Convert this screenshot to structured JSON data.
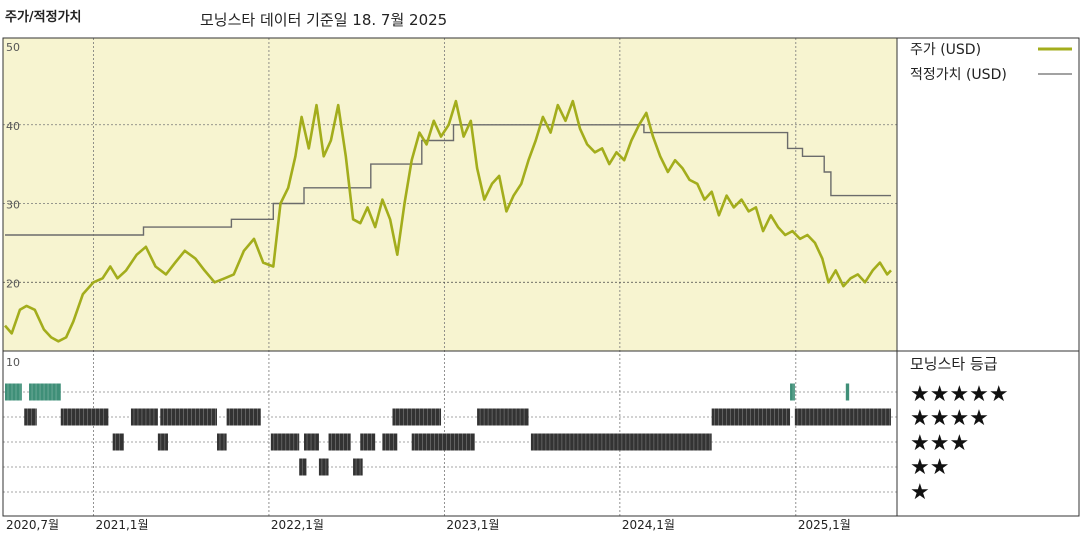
{
  "header": {
    "title": "주가/적정가치",
    "subtitle": "모닝스타 데이터 기준일 18. 7월 2025"
  },
  "legend": {
    "price": "주가 (USD)",
    "fair": "적정가치 (USD)"
  },
  "rating": {
    "title": "모닝스타 등급",
    "levels": [
      "★★★★★",
      "★★★★",
      "★★★",
      "★★",
      "★"
    ]
  },
  "colors": {
    "plot_bg": "#f7f4d0",
    "price_line": "#a3ad1c",
    "fair_line": "#6b6b6b",
    "five_star": "#3f8f78",
    "bars": "#333333"
  },
  "chart_data": [
    {
      "type": "line",
      "title": "주가/적정가치",
      "x_range": [
        "2020-07-01",
        "2025-07-18"
      ],
      "x_ticks": [
        "2020,7월",
        "2021,1월",
        "2022,1월",
        "2023,1월",
        "2024,1월",
        "2025,1월"
      ],
      "x_tick_dates": [
        "2020-07-01",
        "2021-01-01",
        "2022-01-01",
        "2023-01-01",
        "2024-01-01",
        "2025-01-01"
      ],
      "y_ticks": [
        50,
        40,
        30,
        20
      ],
      "ylim": [
        10,
        50
      ],
      "series": [
        {
          "name": "주가 (USD)",
          "points": [
            [
              "2020-07-01",
              14.5
            ],
            [
              "2020-07-15",
              13.5
            ],
            [
              "2020-08-01",
              16.5
            ],
            [
              "2020-08-15",
              17.0
            ],
            [
              "2020-09-01",
              16.5
            ],
            [
              "2020-09-20",
              14.0
            ],
            [
              "2020-10-05",
              13.0
            ],
            [
              "2020-10-20",
              12.5
            ],
            [
              "2020-11-05",
              13.0
            ],
            [
              "2020-11-20",
              15.0
            ],
            [
              "2020-12-10",
              18.5
            ],
            [
              "2021-01-01",
              20.0
            ],
            [
              "2021-01-20",
              20.5
            ],
            [
              "2021-02-05",
              22.0
            ],
            [
              "2021-02-20",
              20.5
            ],
            [
              "2021-03-10",
              21.5
            ],
            [
              "2021-04-01",
              23.5
            ],
            [
              "2021-04-20",
              24.5
            ],
            [
              "2021-05-10",
              22.0
            ],
            [
              "2021-06-01",
              21.0
            ],
            [
              "2021-06-20",
              22.5
            ],
            [
              "2021-07-10",
              24.0
            ],
            [
              "2021-08-01",
              23.0
            ],
            [
              "2021-08-20",
              21.5
            ],
            [
              "2021-09-10",
              20.0
            ],
            [
              "2021-10-01",
              20.5
            ],
            [
              "2021-10-20",
              21.0
            ],
            [
              "2021-11-10",
              24.0
            ],
            [
              "2021-12-01",
              25.5
            ],
            [
              "2021-12-20",
              22.5
            ],
            [
              "2022-01-10",
              22.0
            ],
            [
              "2022-01-25",
              30.0
            ],
            [
              "2022-02-10",
              32.0
            ],
            [
              "2022-02-25",
              36.0
            ],
            [
              "2022-03-10",
              41.0
            ],
            [
              "2022-03-25",
              37.0
            ],
            [
              "2022-04-10",
              42.5
            ],
            [
              "2022-04-25",
              36.0
            ],
            [
              "2022-05-10",
              38.0
            ],
            [
              "2022-05-25",
              42.5
            ],
            [
              "2022-06-10",
              36.0
            ],
            [
              "2022-06-25",
              28.0
            ],
            [
              "2022-07-10",
              27.5
            ],
            [
              "2022-07-25",
              29.5
            ],
            [
              "2022-08-10",
              27.0
            ],
            [
              "2022-08-25",
              30.5
            ],
            [
              "2022-09-10",
              28.0
            ],
            [
              "2022-09-25",
              23.5
            ],
            [
              "2022-10-10",
              30.0
            ],
            [
              "2022-10-25",
              35.5
            ],
            [
              "2022-11-10",
              39.0
            ],
            [
              "2022-11-25",
              37.5
            ],
            [
              "2022-12-10",
              40.5
            ],
            [
              "2022-12-25",
              38.5
            ],
            [
              "2023-01-10",
              40.0
            ],
            [
              "2023-01-25",
              43.0
            ],
            [
              "2023-02-10",
              38.5
            ],
            [
              "2023-02-25",
              40.5
            ],
            [
              "2023-03-10",
              34.5
            ],
            [
              "2023-03-25",
              30.5
            ],
            [
              "2023-04-10",
              32.5
            ],
            [
              "2023-04-25",
              33.5
            ],
            [
              "2023-05-10",
              29.0
            ],
            [
              "2023-05-25",
              31.0
            ],
            [
              "2023-06-10",
              32.5
            ],
            [
              "2023-06-25",
              35.5
            ],
            [
              "2023-07-10",
              38.0
            ],
            [
              "2023-07-25",
              41.0
            ],
            [
              "2023-08-10",
              39.0
            ],
            [
              "2023-08-25",
              42.5
            ],
            [
              "2023-09-10",
              40.5
            ],
            [
              "2023-09-25",
              43.0
            ],
            [
              "2023-10-10",
              39.5
            ],
            [
              "2023-10-25",
              37.5
            ],
            [
              "2023-11-10",
              36.5
            ],
            [
              "2023-11-25",
              37.0
            ],
            [
              "2023-12-10",
              35.0
            ],
            [
              "2023-12-25",
              36.5
            ],
            [
              "2024-01-10",
              35.5
            ],
            [
              "2024-01-25",
              38.0
            ],
            [
              "2024-02-10",
              40.0
            ],
            [
              "2024-02-25",
              41.5
            ],
            [
              "2024-03-10",
              38.5
            ],
            [
              "2024-03-25",
              36.0
            ],
            [
              "2024-04-10",
              34.0
            ],
            [
              "2024-04-25",
              35.5
            ],
            [
              "2024-05-10",
              34.5
            ],
            [
              "2024-05-25",
              33.0
            ],
            [
              "2024-06-10",
              32.5
            ],
            [
              "2024-06-25",
              30.5
            ],
            [
              "2024-07-10",
              31.5
            ],
            [
              "2024-07-25",
              28.5
            ],
            [
              "2024-08-10",
              31.0
            ],
            [
              "2024-08-25",
              29.5
            ],
            [
              "2024-09-10",
              30.5
            ],
            [
              "2024-09-25",
              29.0
            ],
            [
              "2024-10-10",
              29.5
            ],
            [
              "2024-10-25",
              26.5
            ],
            [
              "2024-11-10",
              28.5
            ],
            [
              "2024-11-25",
              27.0
            ],
            [
              "2024-12-10",
              26.0
            ],
            [
              "2024-12-25",
              26.5
            ],
            [
              "2025-01-10",
              25.5
            ],
            [
              "2025-01-25",
              26.0
            ],
            [
              "2025-02-10",
              25.0
            ],
            [
              "2025-02-25",
              23.0
            ],
            [
              "2025-03-10",
              20.0
            ],
            [
              "2025-03-25",
              21.5
            ],
            [
              "2025-04-10",
              19.5
            ],
            [
              "2025-04-25",
              20.5
            ],
            [
              "2025-05-10",
              21.0
            ],
            [
              "2025-05-25",
              20.0
            ],
            [
              "2025-06-10",
              21.5
            ],
            [
              "2025-06-25",
              22.5
            ],
            [
              "2025-07-10",
              21.0
            ],
            [
              "2025-07-18",
              21.5
            ]
          ]
        },
        {
          "name": "적정가치 (USD)",
          "step": true,
          "points": [
            [
              "2020-07-01",
              26.0
            ],
            [
              "2021-01-01",
              26.0
            ],
            [
              "2021-04-15",
              26.0
            ],
            [
              "2021-04-15",
              27.0
            ],
            [
              "2021-10-15",
              27.0
            ],
            [
              "2021-10-15",
              28.0
            ],
            [
              "2022-01-10",
              28.0
            ],
            [
              "2022-01-10",
              30.0
            ],
            [
              "2022-03-15",
              30.0
            ],
            [
              "2022-03-15",
              32.0
            ],
            [
              "2022-08-01",
              32.0
            ],
            [
              "2022-08-01",
              35.0
            ],
            [
              "2022-11-15",
              35.0
            ],
            [
              "2022-11-15",
              38.0
            ],
            [
              "2023-01-20",
              38.0
            ],
            [
              "2023-01-20",
              40.0
            ],
            [
              "2024-02-20",
              40.0
            ],
            [
              "2024-02-20",
              39.0
            ],
            [
              "2024-12-15",
              39.0
            ],
            [
              "2024-12-15",
              37.0
            ],
            [
              "2025-01-15",
              37.0
            ],
            [
              "2025-01-15",
              36.0
            ],
            [
              "2025-03-01",
              36.0
            ],
            [
              "2025-03-01",
              34.0
            ],
            [
              "2025-03-15",
              34.0
            ],
            [
              "2025-03-15",
              31.0
            ],
            [
              "2025-07-18",
              31.0
            ]
          ]
        }
      ]
    },
    {
      "type": "bar",
      "title": "모닝스타 등급",
      "y_ticks": [
        10
      ],
      "rows": [
        "★★★★★",
        "★★★★",
        "★★★",
        "★★",
        "★"
      ],
      "segments": [
        {
          "stars": 5,
          "start": "2020-07-01",
          "end": "2020-08-05"
        },
        {
          "stars": 5,
          "start": "2020-08-20",
          "end": "2020-10-25"
        },
        {
          "stars": 5,
          "start": "2024-12-20",
          "end": "2024-12-30"
        },
        {
          "stars": 5,
          "start": "2025-04-15",
          "end": "2025-04-22"
        },
        {
          "stars": 4,
          "start": "2020-08-10",
          "end": "2020-09-05"
        },
        {
          "stars": 4,
          "start": "2020-10-25",
          "end": "2021-02-01"
        },
        {
          "stars": 4,
          "start": "2021-03-20",
          "end": "2021-05-15"
        },
        {
          "stars": 4,
          "start": "2021-05-20",
          "end": "2021-09-15"
        },
        {
          "stars": 4,
          "start": "2021-10-05",
          "end": "2021-12-15"
        },
        {
          "stars": 4,
          "start": "2022-09-15",
          "end": "2022-12-25"
        },
        {
          "stars": 4,
          "start": "2023-03-10",
          "end": "2023-06-25"
        },
        {
          "stars": 4,
          "start": "2024-07-10",
          "end": "2024-12-20"
        },
        {
          "stars": 4,
          "start": "2024-12-30",
          "end": "2025-07-18"
        },
        {
          "stars": 3,
          "start": "2021-02-10",
          "end": "2021-03-05"
        },
        {
          "stars": 3,
          "start": "2021-05-15",
          "end": "2021-06-05"
        },
        {
          "stars": 3,
          "start": "2021-09-15",
          "end": "2021-10-05"
        },
        {
          "stars": 3,
          "start": "2022-01-05",
          "end": "2022-03-05"
        },
        {
          "stars": 3,
          "start": "2022-03-15",
          "end": "2022-04-15"
        },
        {
          "stars": 3,
          "start": "2022-05-05",
          "end": "2022-06-20"
        },
        {
          "stars": 3,
          "start": "2022-07-10",
          "end": "2022-08-10"
        },
        {
          "stars": 3,
          "start": "2022-08-25",
          "end": "2022-09-25"
        },
        {
          "stars": 3,
          "start": "2022-10-25",
          "end": "2023-03-05"
        },
        {
          "stars": 3,
          "start": "2023-06-30",
          "end": "2024-07-10"
        },
        {
          "stars": 2,
          "start": "2022-03-05",
          "end": "2022-03-20"
        },
        {
          "stars": 2,
          "start": "2022-04-15",
          "end": "2022-05-05"
        },
        {
          "stars": 2,
          "start": "2022-06-25",
          "end": "2022-07-15"
        }
      ]
    }
  ]
}
